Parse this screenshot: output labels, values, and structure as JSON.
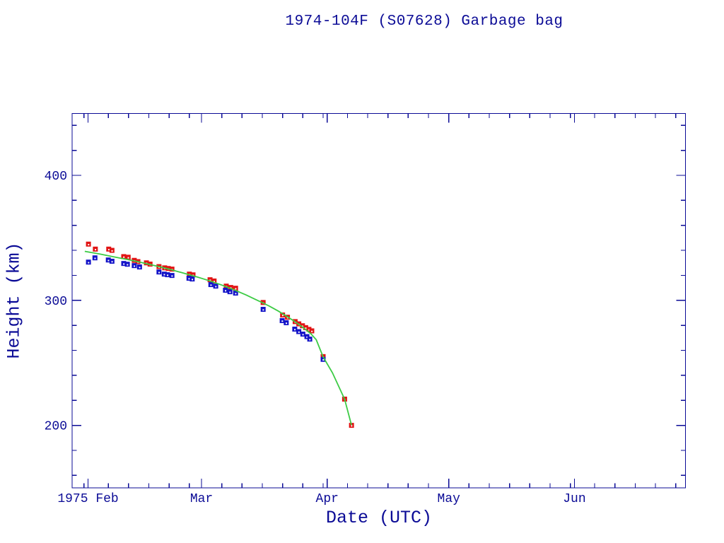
{
  "chart_data": {
    "type": "scatter",
    "title": "1974-104F (S07628) Garbage bag",
    "xlabel": "Date (UTC)",
    "ylabel": "Height (km)",
    "background_color": "#ffffff",
    "frame_color": "#0b0b96",
    "text_color": "#0b0b96",
    "grid": false,
    "legend": "none",
    "x_axis": {
      "unit": "days since 1975 Feb 1 00:00 UTC",
      "range": [
        -3.93,
        147.4
      ],
      "month_ticks": [
        {
          "label": "1975 Feb",
          "day": 0,
          "length": 28
        },
        {
          "label": "Mar",
          "day": 28,
          "length": 31
        },
        {
          "label": "Apr",
          "day": 59,
          "length": 30
        },
        {
          "label": "May",
          "day": 89,
          "length": 31
        },
        {
          "label": "Jun",
          "day": 120,
          "length": 30
        }
      ],
      "minor_day_step": 5,
      "extra_minor_days": [
        -1
      ]
    },
    "y_axis": {
      "unit": "km",
      "range": [
        150,
        449.5
      ],
      "major_ticks": [
        200,
        300,
        400
      ],
      "minor_step": 20,
      "minor_min": 160,
      "minor_max": 440
    },
    "series": [
      {
        "id": "red-squares",
        "kind": "points",
        "marker": "filled-square-with-hole",
        "color": "#e11414",
        "points": [
          [
            0.1,
            345
          ],
          [
            1.8,
            341
          ],
          [
            5.1,
            341
          ],
          [
            5.9,
            340
          ],
          [
            8.8,
            335
          ],
          [
            9.9,
            334.5
          ],
          [
            11.4,
            332
          ],
          [
            12.3,
            331
          ],
          [
            14.4,
            330
          ],
          [
            15.3,
            329
          ],
          [
            17.5,
            327
          ],
          [
            18.9,
            326
          ],
          [
            19.8,
            325.5
          ],
          [
            20.7,
            325
          ],
          [
            25.0,
            321
          ],
          [
            25.9,
            320.4
          ],
          [
            30.1,
            316.5
          ],
          [
            31.1,
            315.5
          ],
          [
            34.1,
            311.4
          ],
          [
            35.2,
            310.3
          ],
          [
            36.4,
            309.7
          ],
          [
            43.2,
            298.3
          ],
          [
            48.0,
            288.3
          ],
          [
            49.2,
            286.5
          ],
          [
            51.1,
            283
          ],
          [
            52.0,
            281.2
          ],
          [
            52.9,
            279.7
          ],
          [
            53.7,
            278.2
          ],
          [
            54.5,
            276.8
          ],
          [
            55.2,
            275.6
          ],
          [
            58.0,
            255
          ],
          [
            63.3,
            221
          ],
          [
            65.0,
            200
          ]
        ]
      },
      {
        "id": "blue-squares",
        "kind": "points",
        "marker": "filled-square-with-hole",
        "color": "#1414c8",
        "points": [
          [
            0.1,
            330.6
          ],
          [
            1.7,
            334
          ],
          [
            5.0,
            332.3
          ],
          [
            5.9,
            331.3
          ],
          [
            8.8,
            329.5
          ],
          [
            9.7,
            328.9
          ],
          [
            11.4,
            327.8
          ],
          [
            12.7,
            326.7
          ],
          [
            17.5,
            322.7
          ],
          [
            18.8,
            321
          ],
          [
            19.6,
            320.5
          ],
          [
            20.7,
            319.9
          ],
          [
            24.9,
            317.7
          ],
          [
            25.7,
            317.1
          ],
          [
            30.3,
            312.6
          ],
          [
            31.5,
            311.4
          ],
          [
            33.9,
            308.1
          ],
          [
            35.0,
            306.9
          ],
          [
            36.4,
            305.8
          ],
          [
            43.2,
            292.8
          ],
          [
            47.9,
            283.8
          ],
          [
            48.9,
            282.1
          ],
          [
            51.0,
            277
          ],
          [
            52.0,
            275
          ],
          [
            53.0,
            273
          ],
          [
            54.0,
            271
          ],
          [
            54.7,
            269
          ],
          [
            58.0,
            252.8
          ]
        ]
      },
      {
        "id": "green-curve",
        "kind": "line",
        "color": "#3ccb44",
        "points": [
          [
            -0.8,
            339.2
          ],
          [
            3,
            337
          ],
          [
            6,
            335
          ],
          [
            9,
            333.1
          ],
          [
            12,
            331.1
          ],
          [
            15,
            328.9
          ],
          [
            18,
            326.6
          ],
          [
            21,
            324.1
          ],
          [
            24,
            321.4
          ],
          [
            27,
            318.6
          ],
          [
            30,
            315.6
          ],
          [
            33,
            312.2
          ],
          [
            36,
            308.5
          ],
          [
            39,
            304.3
          ],
          [
            41,
            301.2
          ],
          [
            43,
            298.2
          ],
          [
            45,
            294.9
          ],
          [
            47,
            291.3
          ],
          [
            49,
            287.3
          ],
          [
            51,
            283.1
          ],
          [
            53,
            278.4
          ],
          [
            55,
            273.2
          ],
          [
            56.3,
            268.5
          ],
          [
            58,
            254.8
          ],
          [
            60.3,
            242
          ],
          [
            63.3,
            221
          ],
          [
            65,
            200.2
          ]
        ]
      }
    ]
  }
}
